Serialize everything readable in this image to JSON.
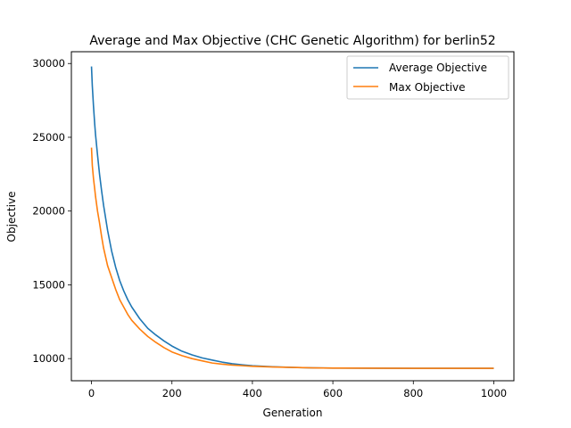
{
  "chart_data": {
    "type": "line",
    "title": "Average and Max Objective (CHC Genetic Algorithm) for berlin52",
    "xlabel": "Generation",
    "ylabel": "Objective",
    "xlim": [
      -50,
      1050
    ],
    "ylim": [
      8500,
      30800
    ],
    "xticks": [
      0,
      200,
      400,
      600,
      800,
      1000
    ],
    "yticks": [
      10000,
      15000,
      20000,
      25000,
      30000
    ],
    "grid": false,
    "legend_position": "top-right",
    "series": [
      {
        "name": "Average Objective",
        "color": "#1f77b4",
        "x": [
          0,
          2,
          5,
          8,
          10,
          15,
          20,
          25,
          30,
          40,
          50,
          60,
          70,
          80,
          90,
          100,
          120,
          140,
          160,
          180,
          200,
          225,
          250,
          275,
          300,
          325,
          350,
          375,
          400,
          450,
          500,
          550,
          600,
          700,
          800,
          900,
          1000
        ],
        "values": [
          29800,
          28500,
          27100,
          25900,
          25200,
          23800,
          22500,
          21400,
          20400,
          18700,
          17300,
          16200,
          15300,
          14600,
          14000,
          13500,
          12700,
          12050,
          11600,
          11200,
          10850,
          10500,
          10250,
          10050,
          9900,
          9760,
          9650,
          9580,
          9520,
          9450,
          9400,
          9370,
          9360,
          9350,
          9345,
          9340,
          9340
        ]
      },
      {
        "name": "Max Objective",
        "color": "#ff7f0e",
        "x": [
          0,
          2,
          5,
          8,
          10,
          15,
          20,
          25,
          30,
          40,
          50,
          60,
          70,
          80,
          90,
          100,
          120,
          140,
          160,
          180,
          200,
          225,
          250,
          275,
          300,
          325,
          350,
          375,
          400,
          450,
          500,
          550,
          600,
          700,
          800,
          900,
          1000
        ],
        "values": [
          24300,
          23100,
          22200,
          21500,
          21000,
          20000,
          19200,
          18300,
          17500,
          16300,
          15500,
          14700,
          14000,
          13500,
          13000,
          12600,
          12000,
          11500,
          11100,
          10750,
          10450,
          10200,
          10000,
          9850,
          9700,
          9620,
          9560,
          9520,
          9480,
          9430,
          9400,
          9370,
          9360,
          9350,
          9345,
          9340,
          9340
        ]
      }
    ]
  }
}
